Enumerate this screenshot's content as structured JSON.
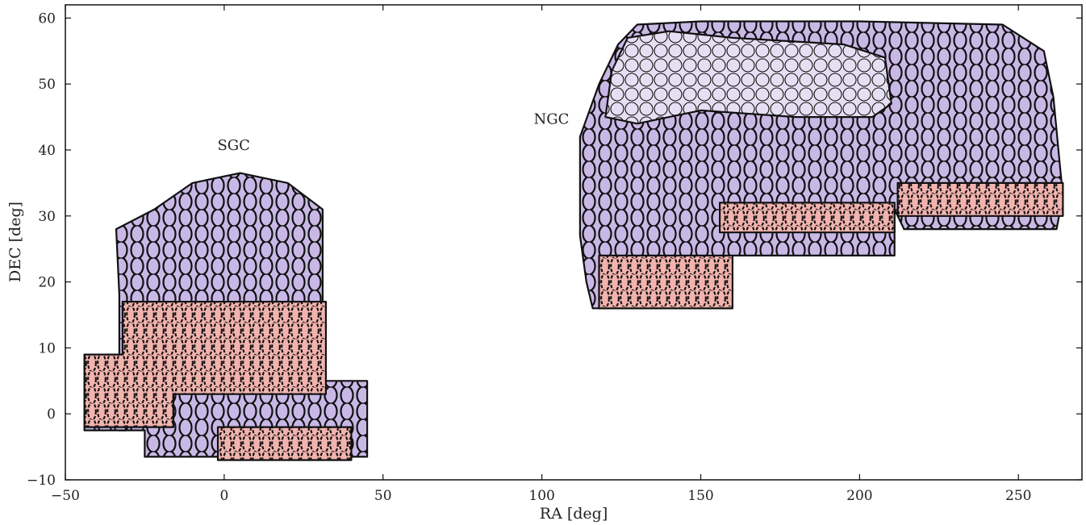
{
  "chart_data": {
    "type": "scatter",
    "title": "",
    "xlabel": "RA [deg]",
    "ylabel": "DEC [deg]",
    "xlim": [
      -50,
      270
    ],
    "ylim": [
      -10,
      62
    ],
    "xticks": [
      -50,
      0,
      50,
      100,
      150,
      200,
      250
    ],
    "yticks": [
      -10,
      0,
      10,
      20,
      30,
      40,
      50,
      60
    ],
    "xtick_labels": [
      "−50",
      "0",
      "50",
      "100",
      "150",
      "200",
      "250"
    ],
    "ytick_labels": [
      "−10",
      "0",
      "10",
      "20",
      "30",
      "40",
      "50",
      "60"
    ],
    "grid": false,
    "annotations": [
      {
        "text": "SGC",
        "x": 3,
        "y": 40
      },
      {
        "text": "NGC",
        "x": 103,
        "y": 44
      }
    ],
    "colors": {
      "plate_fill": "#c9b8e6",
      "observed_fill": "#f2b3ae",
      "light_fill": "#e6def2",
      "outline": "#111111"
    },
    "footprints": [
      {
        "name": "SGC",
        "kind": "solid",
        "polygon": [
          [
            -33,
            8.5
          ],
          [
            -33,
            -2.5
          ],
          [
            -25,
            -2.5
          ],
          [
            -25,
            -6.5
          ],
          [
            45,
            -6.5
          ],
          [
            45,
            5
          ],
          [
            31,
            5
          ],
          [
            31,
            31
          ],
          [
            20,
            35
          ],
          [
            5,
            36.5
          ],
          [
            -10,
            35
          ],
          [
            -22,
            31
          ],
          [
            -34,
            28
          ],
          [
            -33,
            18
          ]
        ]
      },
      {
        "name": "SGC-west",
        "kind": "solid",
        "polygon": [
          [
            -44,
            9
          ],
          [
            -31,
            9
          ],
          [
            -31,
            -2.5
          ],
          [
            -44,
            -2.5
          ]
        ]
      },
      {
        "name": "SGC-observed",
        "kind": "dashed",
        "polygon": [
          [
            -32,
            17
          ],
          [
            32,
            17
          ],
          [
            32,
            3
          ],
          [
            -16,
            3
          ],
          [
            -16,
            -2
          ],
          [
            -44,
            -2
          ],
          [
            -44,
            9
          ],
          [
            -32,
            9
          ]
        ]
      },
      {
        "name": "SGC-south-observed",
        "kind": "dashed",
        "polygon": [
          [
            -2,
            -2
          ],
          [
            40,
            -2
          ],
          [
            40,
            -7
          ],
          [
            -2,
            -7
          ]
        ]
      },
      {
        "name": "NGC",
        "kind": "solid",
        "polygon": [
          [
            112,
            42
          ],
          [
            118,
            50
          ],
          [
            124,
            56
          ],
          [
            130,
            59
          ],
          [
            150,
            59.5
          ],
          [
            200,
            59.5
          ],
          [
            245,
            59
          ],
          [
            258,
            55
          ],
          [
            261,
            48
          ],
          [
            263,
            38
          ],
          [
            264,
            33
          ],
          [
            262,
            28
          ],
          [
            214,
            28
          ],
          [
            211,
            31
          ],
          [
            211,
            24
          ],
          [
            160,
            24
          ],
          [
            160,
            16
          ],
          [
            116,
            16
          ],
          [
            114,
            20
          ],
          [
            112,
            27
          ]
        ]
      },
      {
        "name": "NGC-light",
        "kind": "light",
        "polygon": [
          [
            120,
            45
          ],
          [
            122,
            52
          ],
          [
            127,
            57
          ],
          [
            140,
            58
          ],
          [
            160,
            57
          ],
          [
            195,
            56
          ],
          [
            208,
            54
          ],
          [
            210,
            47
          ],
          [
            204,
            45
          ],
          [
            180,
            45
          ],
          [
            150,
            46
          ],
          [
            130,
            44
          ]
        ]
      },
      {
        "name": "NGC-observed",
        "kind": "dashed",
        "polygon": [
          [
            118,
            24
          ],
          [
            160,
            24
          ],
          [
            160,
            16
          ],
          [
            118,
            16
          ]
        ]
      },
      {
        "name": "NGC-mid-observed",
        "kind": "dashed",
        "polygon": [
          [
            156,
            32
          ],
          [
            211,
            32
          ],
          [
            211,
            27.5
          ],
          [
            156,
            27.5
          ]
        ]
      },
      {
        "name": "NGC-east-observed",
        "kind": "dashed",
        "polygon": [
          [
            212,
            35
          ],
          [
            264,
            35
          ],
          [
            264,
            30
          ],
          [
            212,
            30
          ]
        ]
      }
    ]
  }
}
